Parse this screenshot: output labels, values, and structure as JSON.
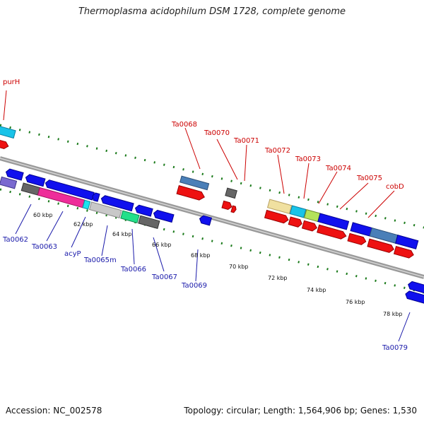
{
  "title": "Thermoplasma acidophilum DSM 1728, complete genome",
  "footer": {
    "accession": "Accession: NC_002578",
    "summary": "Topology: circular; Length: 1,564,906 bp; Genes: 1,530"
  },
  "colors": {
    "backbone": "#8a8a8a",
    "tick": "#1a7a1a",
    "label_top": "#cc0000",
    "label_bottom": "#1a1aaa",
    "kbp_text": "#111111"
  },
  "scale_labels": [
    "60 kbp",
    "62 kbp",
    "64 kbp",
    "66 kbp",
    "68 kbp",
    "70 kbp",
    "72 kbp",
    "74 kbp",
    "76 kbp",
    "78 kbp"
  ],
  "top_labels": [
    "purH",
    "Ta0068",
    "Ta0070",
    "Ta0071",
    "Ta0072",
    "Ta0073",
    "Ta0074",
    "Ta0075",
    "cobD"
  ],
  "bottom_labels": [
    "Ta0062",
    "Ta0063",
    "acyP",
    "Ta0065m",
    "Ta0066",
    "Ta0067",
    "Ta0069",
    "Ta0079"
  ]
}
